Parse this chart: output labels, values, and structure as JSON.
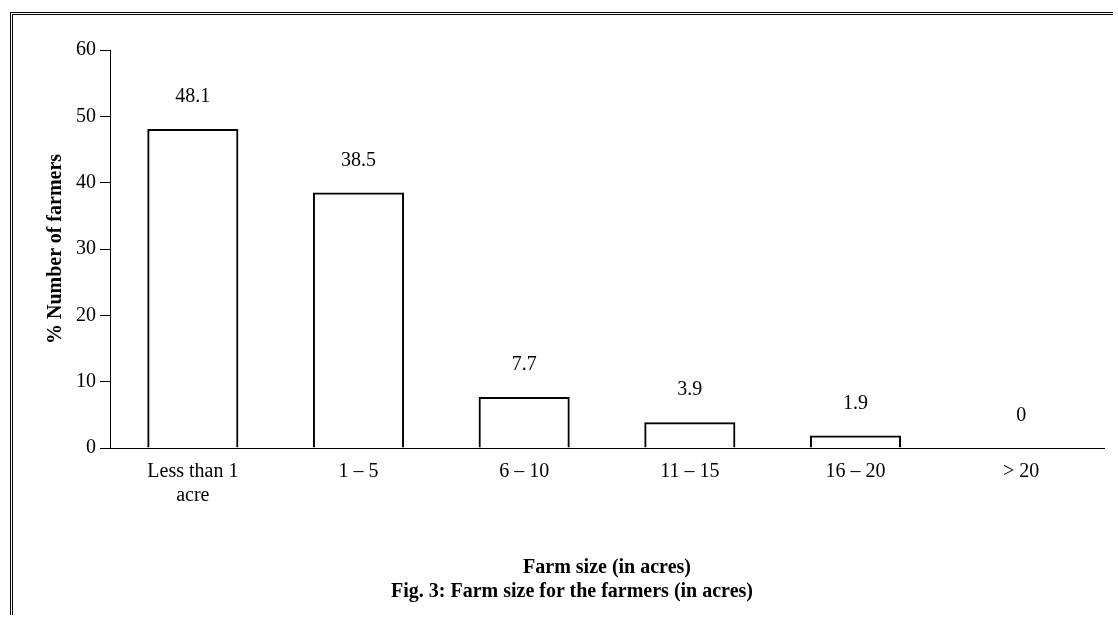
{
  "chart_data": {
    "type": "bar",
    "title": "Fig. 3: Farm size for the farmers (in acres)",
    "xlabel": "Farm size (in acres)",
    "ylabel": "% Number of farmers",
    "categories": [
      "Less than 1 acre",
      "1 – 5",
      "6 – 10",
      "11 – 15",
      "16 – 20",
      "> 20"
    ],
    "values": [
      48.1,
      38.5,
      7.7,
      3.9,
      1.9,
      0
    ],
    "color": "#000000",
    "ylim": [
      0,
      60
    ],
    "yticks": [
      0,
      10,
      20,
      30,
      40,
      50,
      60
    ],
    "grid": false,
    "legend": false,
    "data_labels": true
  }
}
